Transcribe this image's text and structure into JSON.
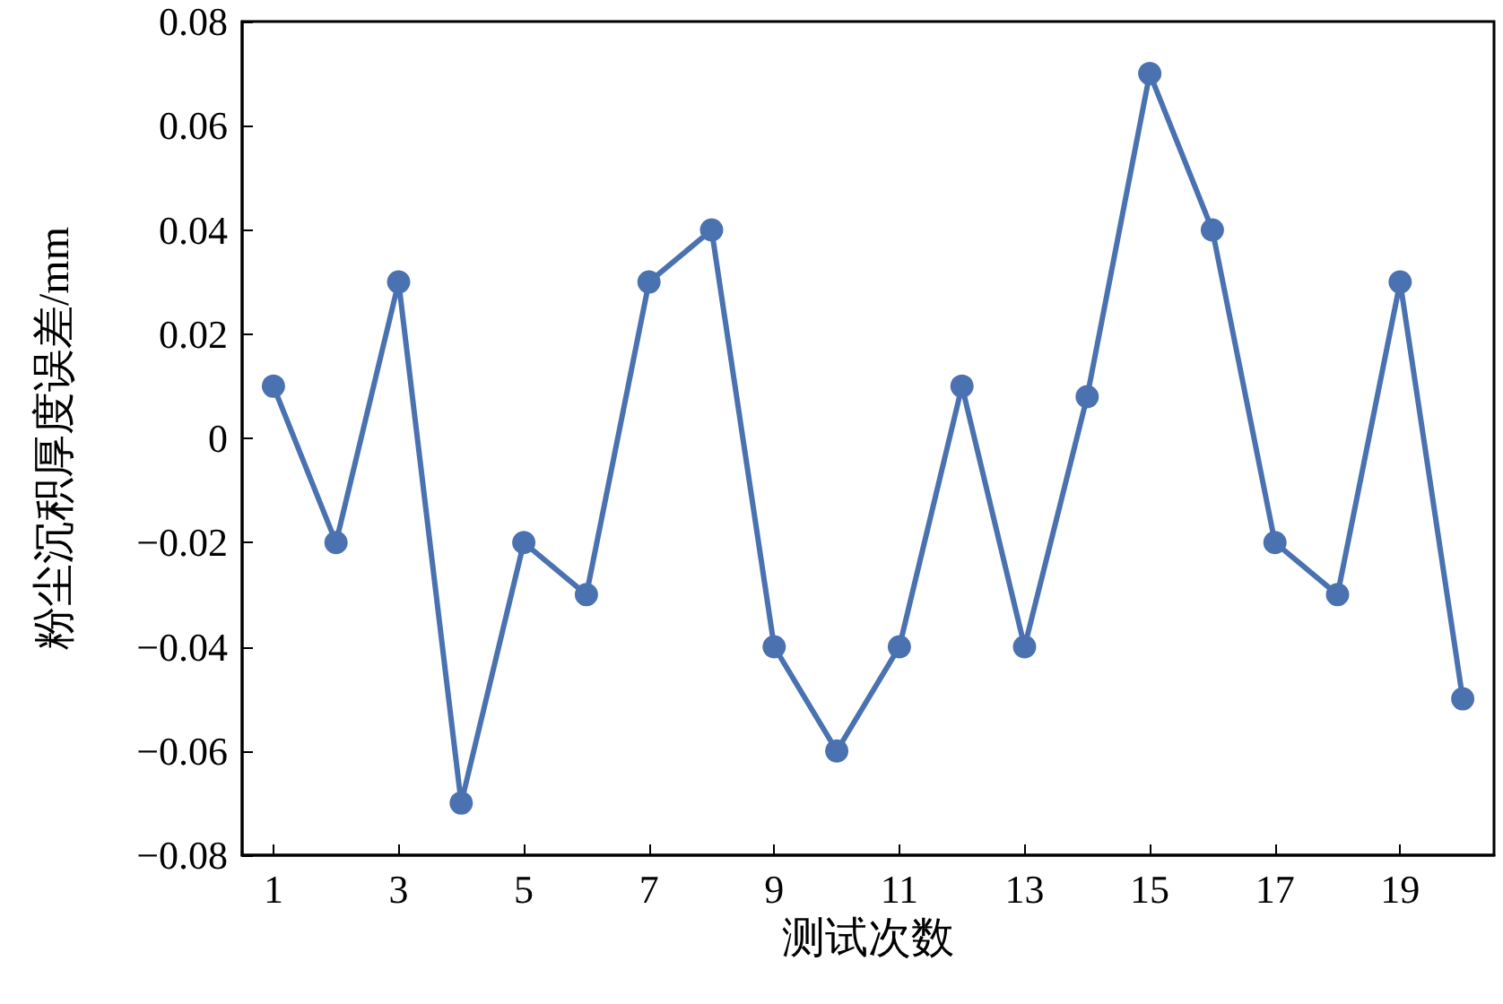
{
  "chart_data": {
    "type": "line",
    "xlabel": "测试次数",
    "ylabel": "粉尘沉积厚度误差/mm",
    "x": [
      1,
      2,
      3,
      4,
      5,
      6,
      7,
      8,
      9,
      10,
      11,
      12,
      13,
      14,
      15,
      16,
      17,
      18,
      19,
      20
    ],
    "series": [
      {
        "color": "#4a72b0",
        "values": [
          0.01,
          -0.02,
          0.03,
          -0.07,
          -0.02,
          -0.03,
          0.03,
          0.04,
          -0.04,
          -0.06,
          -0.04,
          0.01,
          -0.04,
          0.008,
          0.07,
          0.04,
          -0.02,
          -0.03,
          0.03,
          -0.05
        ]
      }
    ],
    "xlim": [
      0.5,
      20.5
    ],
    "xticks": [
      1,
      3,
      5,
      7,
      9,
      11,
      13,
      15,
      17,
      19
    ],
    "ylim": [
      -0.08,
      0.08
    ],
    "yticks": [
      {
        "value": -0.08,
        "label": "−0.08"
      },
      {
        "value": -0.06,
        "label": "−0.06"
      },
      {
        "value": -0.04,
        "label": "−0.04"
      },
      {
        "value": -0.02,
        "label": "−0.02"
      },
      0,
      0.02,
      0.04,
      0.06,
      0.08
    ],
    "marker": "circle",
    "line_style": "solid"
  }
}
